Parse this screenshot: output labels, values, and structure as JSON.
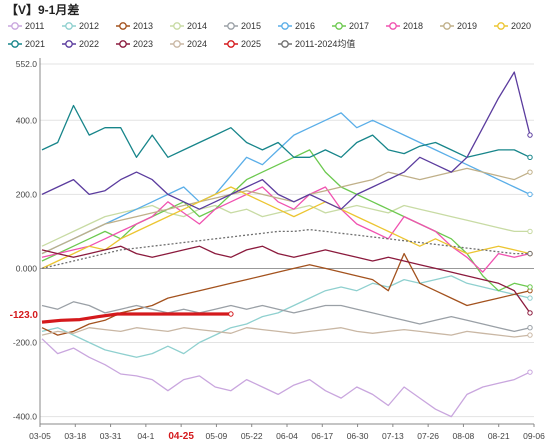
{
  "chart_data": {
    "type": "line",
    "title": "【V】9-1月差",
    "x_ticks": [
      "03-05",
      "03-18",
      "03-31",
      "04-1",
      "04-25",
      "05-09",
      "05-22",
      "06-04",
      "06-17",
      "06-30",
      "07-13",
      "07-26",
      "08-08",
      "08-21",
      "09-06"
    ],
    "highlight_x_tick": "04-25",
    "y_ticks": [
      "552.0",
      "400.0",
      "200.0",
      "0.000",
      "-200.0",
      "-400.0"
    ],
    "ylim": [
      -420,
      552
    ],
    "current_value_label": "-123.0",
    "current_value": -123,
    "legend_position": "top",
    "series": [
      {
        "name": "2011",
        "color": "#c9a6de",
        "values": [
          -190,
          -230,
          -215,
          -240,
          -260,
          -285,
          -290,
          -300,
          -330,
          -300,
          -290,
          -320,
          -330,
          -300,
          -320,
          -340,
          -315,
          -300,
          -330,
          -350,
          -320,
          -340,
          -370,
          -320,
          -350,
          -380,
          -400,
          -340,
          -320,
          -310,
          -300,
          -280
        ]
      },
      {
        "name": "2012",
        "color": "#8fd0cf",
        "values": [
          -170,
          -160,
          -180,
          -200,
          -220,
          -230,
          -240,
          -230,
          -210,
          -230,
          -200,
          -180,
          -160,
          -150,
          -130,
          -120,
          -100,
          -80,
          -60,
          -50,
          -60,
          -40,
          -50,
          -30,
          -40,
          -30,
          -20,
          -40,
          -50,
          -60,
          -70,
          -80
        ]
      },
      {
        "name": "2013",
        "color": "#a3521e",
        "values": [
          -160,
          -180,
          -170,
          -150,
          -140,
          -120,
          -110,
          -100,
          -80,
          -70,
          -60,
          -50,
          -40,
          -30,
          -20,
          -10,
          0,
          10,
          0,
          -10,
          -20,
          -30,
          -60,
          40,
          -40,
          -60,
          -80,
          -100,
          -90,
          -80,
          -70,
          -60
        ]
      },
      {
        "name": "2014",
        "color": "#c8dba4",
        "values": [
          60,
          80,
          100,
          120,
          140,
          150,
          160,
          170,
          150,
          140,
          160,
          170,
          150,
          160,
          140,
          150,
          160,
          170,
          150,
          160,
          170,
          160,
          150,
          170,
          160,
          150,
          140,
          130,
          120,
          110,
          100,
          100
        ]
      },
      {
        "name": "2015",
        "color": "#9aa0a6",
        "values": [
          -100,
          -110,
          -90,
          -100,
          -120,
          -110,
          -100,
          -110,
          -120,
          -110,
          -120,
          -110,
          -100,
          -110,
          -100,
          -110,
          -120,
          -110,
          -100,
          -100,
          -110,
          -120,
          -130,
          -140,
          -150,
          -140,
          -130,
          -140,
          -150,
          -160,
          -170,
          -160
        ]
      },
      {
        "name": "2016",
        "color": "#5aaee8",
        "values": [
          40,
          60,
          80,
          100,
          120,
          140,
          160,
          180,
          200,
          220,
          180,
          200,
          250,
          300,
          280,
          320,
          360,
          380,
          400,
          420,
          380,
          400,
          380,
          360,
          340,
          320,
          300,
          280,
          260,
          240,
          220,
          200
        ]
      },
      {
        "name": "2017",
        "color": "#6cc94f",
        "values": [
          20,
          40,
          60,
          80,
          100,
          80,
          120,
          140,
          160,
          180,
          140,
          160,
          200,
          240,
          260,
          280,
          300,
          320,
          260,
          220,
          200,
          180,
          160,
          140,
          120,
          100,
          80,
          40,
          -20,
          -60,
          -40,
          -50
        ]
      },
      {
        "name": "2018",
        "color": "#f052b0",
        "values": [
          30,
          40,
          50,
          60,
          80,
          100,
          120,
          140,
          180,
          150,
          120,
          160,
          180,
          200,
          220,
          180,
          160,
          200,
          220,
          160,
          120,
          100,
          80,
          140,
          120,
          100,
          60,
          30,
          -10,
          40,
          30,
          40
        ]
      },
      {
        "name": "2019",
        "color": "#c0b089",
        "values": [
          40,
          60,
          80,
          100,
          120,
          130,
          140,
          150,
          160,
          170,
          180,
          190,
          200,
          210,
          200,
          190,
          180,
          200,
          210,
          220,
          230,
          240,
          260,
          250,
          240,
          250,
          260,
          270,
          260,
          250,
          240,
          260
        ]
      },
      {
        "name": "2020",
        "color": "#ecc531",
        "values": [
          0,
          20,
          40,
          60,
          50,
          80,
          100,
          120,
          140,
          160,
          180,
          200,
          220,
          200,
          180,
          160,
          140,
          160,
          180,
          160,
          140,
          120,
          100,
          80,
          60,
          80,
          60,
          40,
          50,
          60,
          50,
          40
        ]
      },
      {
        "name": "2021",
        "color": "#17858a",
        "values": [
          320,
          340,
          440,
          360,
          380,
          380,
          300,
          360,
          300,
          320,
          340,
          360,
          380,
          340,
          320,
          340,
          300,
          300,
          320,
          300,
          340,
          360,
          320,
          310,
          330,
          340,
          320,
          300,
          310,
          320,
          320,
          300
        ]
      },
      {
        "name": "2022",
        "color": "#5b3c9e",
        "values": [
          200,
          220,
          240,
          200,
          210,
          240,
          260,
          240,
          200,
          180,
          160,
          180,
          200,
          220,
          240,
          200,
          180,
          200,
          180,
          160,
          200,
          220,
          240,
          260,
          300,
          280,
          260,
          300,
          380,
          460,
          530,
          360
        ]
      },
      {
        "name": "2023",
        "color": "#8b1a3d",
        "values": [
          50,
          40,
          30,
          40,
          50,
          60,
          40,
          30,
          40,
          50,
          60,
          40,
          30,
          50,
          60,
          40,
          30,
          40,
          50,
          40,
          30,
          20,
          30,
          20,
          10,
          0,
          -10,
          -20,
          -30,
          -40,
          -60,
          -120
        ]
      },
      {
        "name": "2024",
        "color": "#c9b7a4",
        "values": [
          -180,
          -170,
          -175,
          -160,
          -165,
          -170,
          -160,
          -165,
          -170,
          -160,
          -165,
          -170,
          -175,
          -160,
          -165,
          -170,
          -175,
          -170,
          -165,
          -160,
          -170,
          -175,
          -170,
          -165,
          -170,
          -175,
          -180,
          -170,
          -175,
          -180,
          -185,
          -180
        ]
      },
      {
        "name": "2025",
        "color": "#d4191c",
        "values": [
          -145,
          -140,
          -138,
          -130,
          -123,
          -123,
          -123,
          -123,
          -123,
          -123,
          -123
        ]
      },
      {
        "name": "2011-2024均值",
        "color": "#707070",
        "values": [
          0,
          10,
          20,
          30,
          40,
          50,
          55,
          60,
          65,
          70,
          75,
          80,
          85,
          90,
          95,
          100,
          100,
          105,
          100,
          95,
          90,
          85,
          80,
          75,
          70,
          65,
          60,
          55,
          50,
          45,
          40,
          40
        ]
      }
    ]
  }
}
